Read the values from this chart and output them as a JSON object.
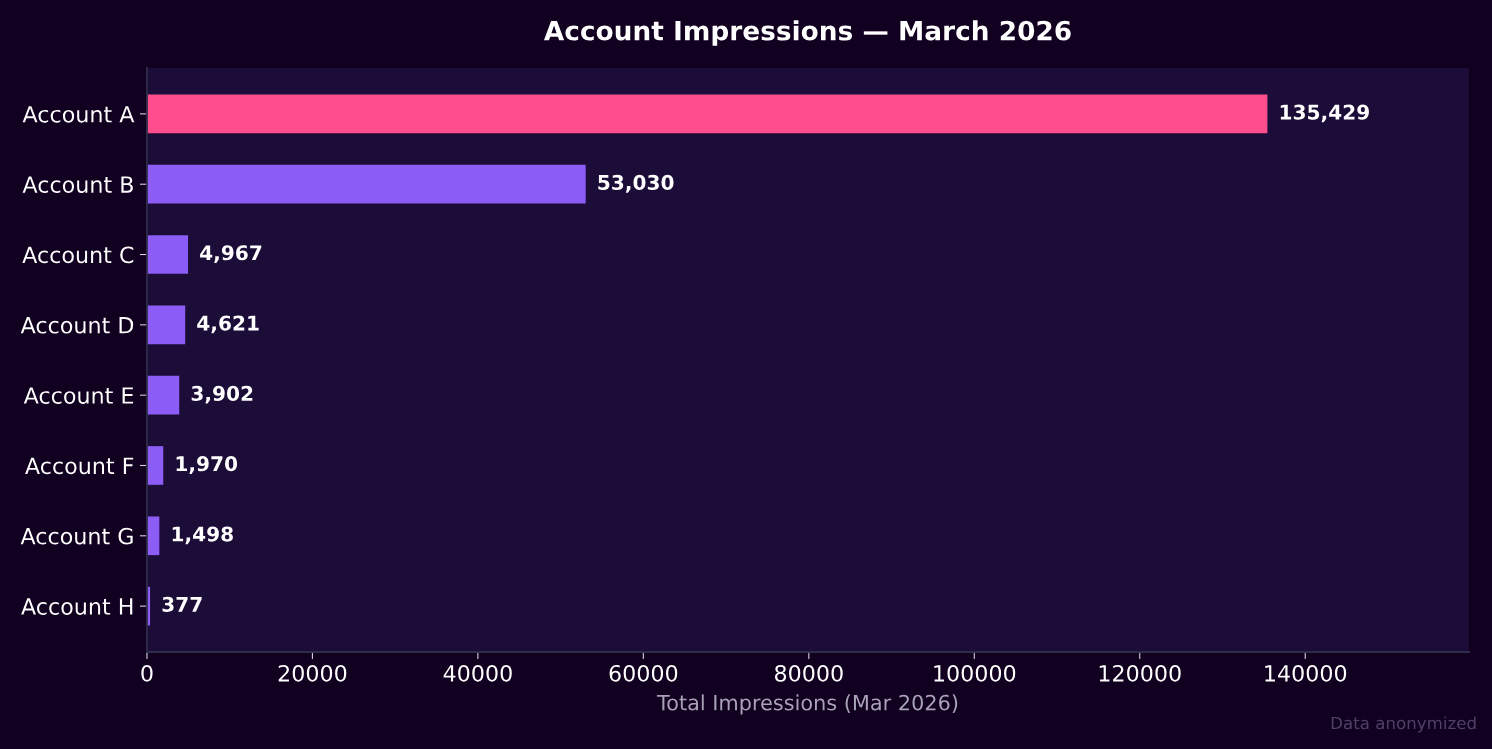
{
  "chart_data": {
    "type": "bar",
    "orientation": "horizontal",
    "title": "Account Impressions — March 2026",
    "xlabel": "Total Impressions (Mar 2026)",
    "categories": [
      "Account A",
      "Account B",
      "Account C",
      "Account D",
      "Account E",
      "Account F",
      "Account G",
      "Account H"
    ],
    "values": [
      135429,
      53030,
      4967,
      4621,
      3902,
      1970,
      1498,
      377
    ],
    "colors": [
      "#ff4d8d",
      "#8b5cf6",
      "#8b5cf6",
      "#8b5cf6",
      "#8b5cf6",
      "#8b5cf6",
      "#8b5cf6",
      "#8b5cf6"
    ],
    "value_labels": [
      "135,429",
      "53,030",
      "4,967",
      "4,621",
      "3,902",
      "1,970",
      "1,498",
      "377"
    ],
    "xlim": [
      0,
      159800
    ],
    "xticks": [
      0,
      20000,
      40000,
      60000,
      80000,
      100000,
      120000,
      140000
    ],
    "annotations": [
      "Data anonymized"
    ]
  }
}
